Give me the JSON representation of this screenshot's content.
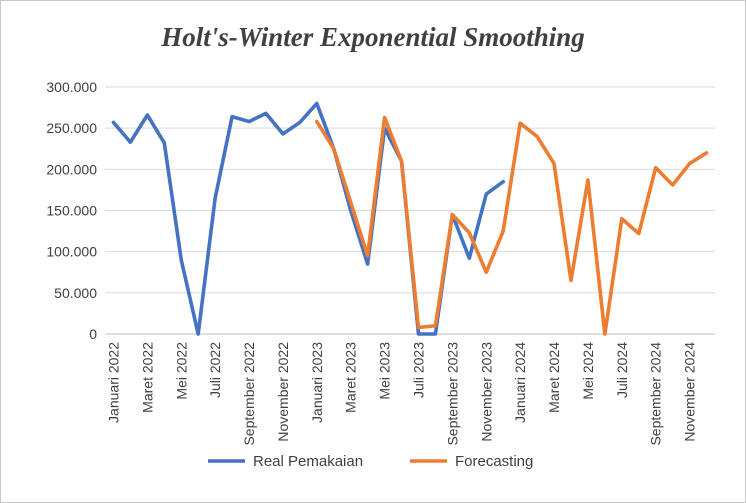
{
  "chart_data": {
    "type": "line",
    "title": "Holt's-Winter Exponential Smoothing",
    "xlabel": "",
    "ylabel": "",
    "ylim": [
      0,
      300000
    ],
    "yticks": [
      0,
      50000,
      100000,
      150000,
      200000,
      250000,
      300000
    ],
    "ytick_labels": [
      "0",
      "50.000",
      "100.000",
      "150.000",
      "200.000",
      "250.000",
      "300.000"
    ],
    "grid": true,
    "legend_position": "bottom",
    "categories": [
      "Januari 2022",
      "Februari 2022",
      "Maret 2022",
      "April 2022",
      "Mei 2022",
      "Juni 2022",
      "Juli 2022",
      "Agustus 2022",
      "September 2022",
      "Oktober 2022",
      "November 2022",
      "Desember 2022",
      "Januari 2023",
      "Februari 2023",
      "Maret 2023",
      "April 2023",
      "Mei 2023",
      "Juni 2023",
      "Juli 2023",
      "Agustus 2023",
      "September 2023",
      "Oktober 2023",
      "November 2023",
      "Desember 2023",
      "Januari 2024",
      "Februari 2024",
      "Maret 2024",
      "April 2024",
      "Mei 2024",
      "Juni 2024",
      "Juli 2024",
      "Agustus 2024",
      "September 2024",
      "Oktober 2024",
      "November 2024",
      "Desember 2024"
    ],
    "visible_tick_labels": [
      "Januari 2022",
      "Maret 2022",
      "Mei 2022",
      "Juli 2022",
      "September 2022",
      "November 2022",
      "Januari 2023",
      "Maret 2023",
      "Mei 2023",
      "Juli 2023",
      "September 2023",
      "November 2023",
      "Januari 2024",
      "Maret 2024",
      "Mei 2024",
      "Juli 2024",
      "September 2024",
      "November 2024"
    ],
    "series": [
      {
        "name": "Real Pemakaian",
        "color": "#4472C4",
        "values": [
          257000,
          233000,
          266000,
          232000,
          90000,
          0,
          165000,
          264000,
          258000,
          268000,
          243000,
          257000,
          280000,
          225000,
          150000,
          85000,
          250000,
          210000,
          0,
          0,
          145000,
          92000,
          170000,
          185000,
          null,
          null,
          null,
          null,
          null,
          null,
          null,
          null,
          null,
          null,
          null,
          null
        ]
      },
      {
        "name": "Forecasting",
        "color": "#ED7D31",
        "values": [
          null,
          null,
          null,
          null,
          null,
          null,
          null,
          null,
          null,
          null,
          null,
          null,
          258000,
          225000,
          160000,
          95000,
          263000,
          210000,
          8000,
          10000,
          145000,
          123000,
          75000,
          125000,
          256000,
          240000,
          207000,
          65000,
          187000,
          0,
          140000,
          122000,
          202000,
          181000,
          207000,
          220000
        ]
      }
    ]
  }
}
